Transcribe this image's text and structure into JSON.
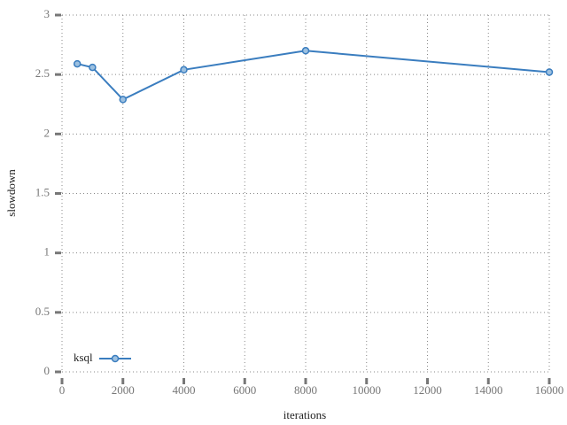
{
  "chart_data": {
    "type": "line",
    "x": [
      500,
      1000,
      2000,
      4000,
      8000,
      16000
    ],
    "series": [
      {
        "name": "ksql",
        "color": "#3a7dbf",
        "values": [
          2.59,
          2.56,
          2.29,
          2.54,
          2.7,
          2.52
        ]
      }
    ],
    "xlabel": "iterations",
    "ylabel": "slowdown",
    "xlim": [
      0,
      16000
    ],
    "xticks": [
      0,
      2000,
      4000,
      6000,
      8000,
      10000,
      12000,
      14000,
      16000
    ],
    "ylim": [
      0,
      3
    ],
    "yticks": [
      0,
      0.5,
      1,
      1.5,
      2,
      2.5,
      3
    ],
    "grid": true,
    "legend": "lower left"
  }
}
